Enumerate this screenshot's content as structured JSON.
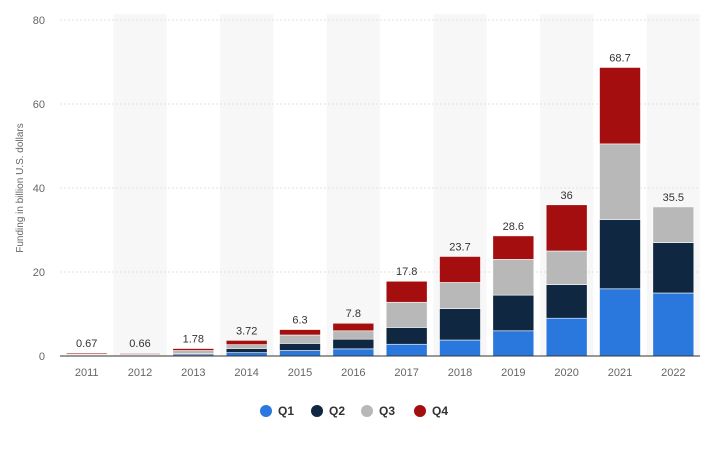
{
  "chart_data": {
    "type": "bar",
    "stacked": true,
    "categories": [
      "2011",
      "2012",
      "2013",
      "2014",
      "2015",
      "2016",
      "2017",
      "2018",
      "2019",
      "2020",
      "2021",
      "2022"
    ],
    "series": [
      {
        "name": "Q1",
        "color": "#2A78DE",
        "values": [
          0.1,
          0.1,
          0.3,
          0.8,
          1.3,
          1.7,
          2.8,
          3.8,
          6.0,
          9.0,
          16.0,
          15.0
        ]
      },
      {
        "name": "Q2",
        "color": "#0F2740",
        "values": [
          0.1,
          0.1,
          0.3,
          1.0,
          1.7,
          2.3,
          4.0,
          7.5,
          8.5,
          8.0,
          16.5,
          12.0
        ]
      },
      {
        "name": "Q3",
        "color": "#B8B8B8",
        "values": [
          0.2,
          0.3,
          0.7,
          0.9,
          2.0,
          2.0,
          6.0,
          6.2,
          8.5,
          8.0,
          18.0,
          8.5
        ]
      },
      {
        "name": "Q4",
        "color": "#A50E0E",
        "values": [
          0.27,
          0.16,
          0.48,
          1.02,
          1.3,
          1.8,
          5.0,
          6.2,
          5.6,
          11.0,
          18.2,
          0
        ]
      }
    ],
    "totals": [
      "0.67",
      "0.66",
      "1.78",
      "3.72",
      "6.3",
      "7.8",
      "17.8",
      "23.7",
      "28.6",
      "36",
      "68.7",
      "35.5"
    ],
    "ylabel": "Funding in billion U.S. dollars",
    "ylim": [
      0,
      80
    ],
    "yticks": [
      0,
      20,
      40,
      60,
      80
    ],
    "grid": true,
    "legend_position": "bottom"
  }
}
